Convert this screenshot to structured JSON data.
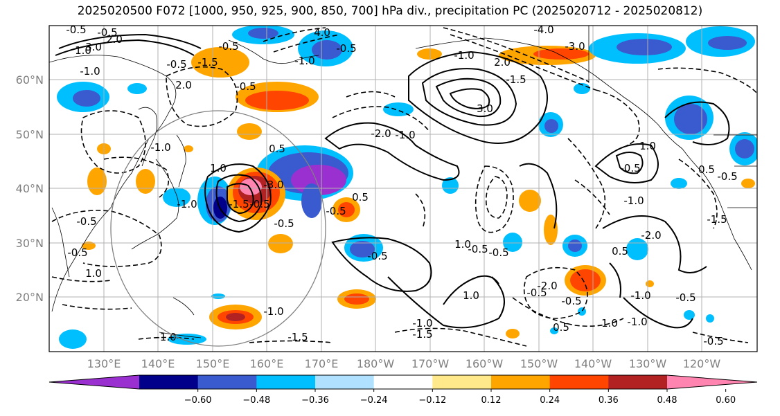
{
  "title": "2025020500 F072 [1000, 950, 925, 900, 850, 700] hPa div., precipitation PC (2025020712 - 2025020812)",
  "map": {
    "lat_ticks": [
      "60°N",
      "50°N",
      "40°N",
      "30°N",
      "20°N"
    ],
    "lon_ticks": [
      "130°E",
      "140°E",
      "150°E",
      "160°E",
      "170°E",
      "180°W",
      "170°W",
      "160°W",
      "150°W",
      "140°W",
      "130°W",
      "120°W"
    ],
    "contour_labels": [
      "-0.5",
      "-1.0",
      "1.0",
      "-0.5",
      "3.0",
      "2.0",
      "-0.5",
      "2.0",
      "-1.0",
      "-1.5",
      "-0.5",
      "4.0",
      "-4.0",
      "-3.0",
      "2.0",
      "-1.0",
      "3.0",
      "-1.5",
      "-2.0",
      "-1.0",
      "-0.5",
      "0.5",
      "-0.5",
      "-1.0",
      "-3.0",
      "-0.5",
      "-1.5",
      "-0.5",
      "-0.5",
      "0.5",
      "1.0",
      "-1.0",
      "-0.5",
      "-0.5",
      "1.0",
      "-1.0",
      "-1.5",
      "-1.0",
      "-0.5",
      "1.0",
      "-1.0",
      "-1.5",
      "-0.5",
      "-0.5",
      "1.0",
      "-2.0",
      "-0.5",
      "-0.5",
      "0.5",
      "1.0",
      "-1.0",
      "-1.0",
      "-0.5",
      "-0.5",
      "-1.5",
      "-0.5",
      "0.5",
      "-1.0",
      "-2.0",
      "0.5",
      "-0.5",
      "1.0"
    ]
  },
  "colorbar": {
    "ticks": [
      "−0.60",
      "−0.48",
      "−0.36",
      "−0.24",
      "−0.12",
      "0.12",
      "0.24",
      "0.36",
      "0.48",
      "0.60"
    ],
    "colors": [
      "#9b30d0",
      "#00008b",
      "#3a5bd0",
      "#00bfff",
      "#b0e2ff",
      "#ffffff",
      "#ffe98a",
      "#ffa500",
      "#ff4500",
      "#b22222",
      "#ff85b0"
    ]
  },
  "palette": {
    "purple": "#9b30d0",
    "navy": "#00008b",
    "royal": "#3a5bd0",
    "sky": "#00bfff",
    "pale_blue": "#b0e2ff",
    "pale_yellow": "#ffe98a",
    "orange": "#ffa500",
    "red_orange": "#ff4500",
    "dark_red": "#b22222",
    "pink": "#ff85b0"
  }
}
